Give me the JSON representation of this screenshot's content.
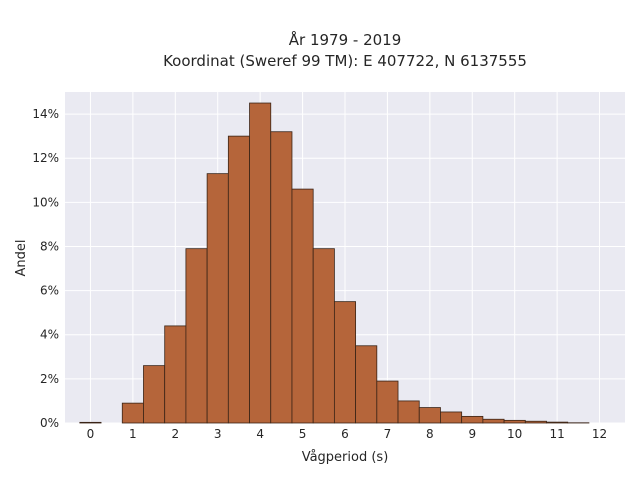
{
  "chart_data": {
    "type": "bar",
    "title_line1": "År 1979 - 2019",
    "title_line2": "Koordinat (Sweref 99 TM): E 407722, N 6137555",
    "xlabel": "Vågperiod (s)",
    "ylabel": "Andel",
    "xlim": [
      -0.6,
      12.6
    ],
    "ylim": [
      0,
      0.15
    ],
    "x_ticks": [
      0,
      1,
      2,
      3,
      4,
      5,
      6,
      7,
      8,
      9,
      10,
      11,
      12
    ],
    "x_tick_labels": [
      "0",
      "1",
      "2",
      "3",
      "4",
      "5",
      "6",
      "7",
      "8",
      "9",
      "10",
      "11",
      "12"
    ],
    "y_ticks": [
      0,
      0.02,
      0.04,
      0.06,
      0.08,
      0.1,
      0.12,
      0.14
    ],
    "y_tick_labels": [
      "0%",
      "2%",
      "4%",
      "6%",
      "8%",
      "10%",
      "12%",
      "14%"
    ],
    "bin_width": 0.5,
    "bin_starts": [
      -0.25,
      0.25,
      0.75,
      1.25,
      1.75,
      2.25,
      2.75,
      3.25,
      3.75,
      4.25,
      4.75,
      5.25,
      5.75,
      6.25,
      6.75,
      7.25,
      7.75,
      8.25,
      8.75,
      9.25,
      9.75,
      10.25,
      10.75,
      11.25,
      11.75
    ],
    "values": [
      0.0003,
      0.0,
      0.009,
      0.026,
      0.044,
      0.079,
      0.113,
      0.13,
      0.145,
      0.132,
      0.106,
      0.079,
      0.055,
      0.035,
      0.019,
      0.01,
      0.007,
      0.005,
      0.003,
      0.0017,
      0.0012,
      0.0008,
      0.0004,
      0.0001,
      0.0
    ],
    "grid": true,
    "colors": {
      "bar_fill": "#b5653a",
      "bar_edge": "#3a2416",
      "plot_bg": "#eaeaf2",
      "grid": "#ffffff"
    }
  }
}
